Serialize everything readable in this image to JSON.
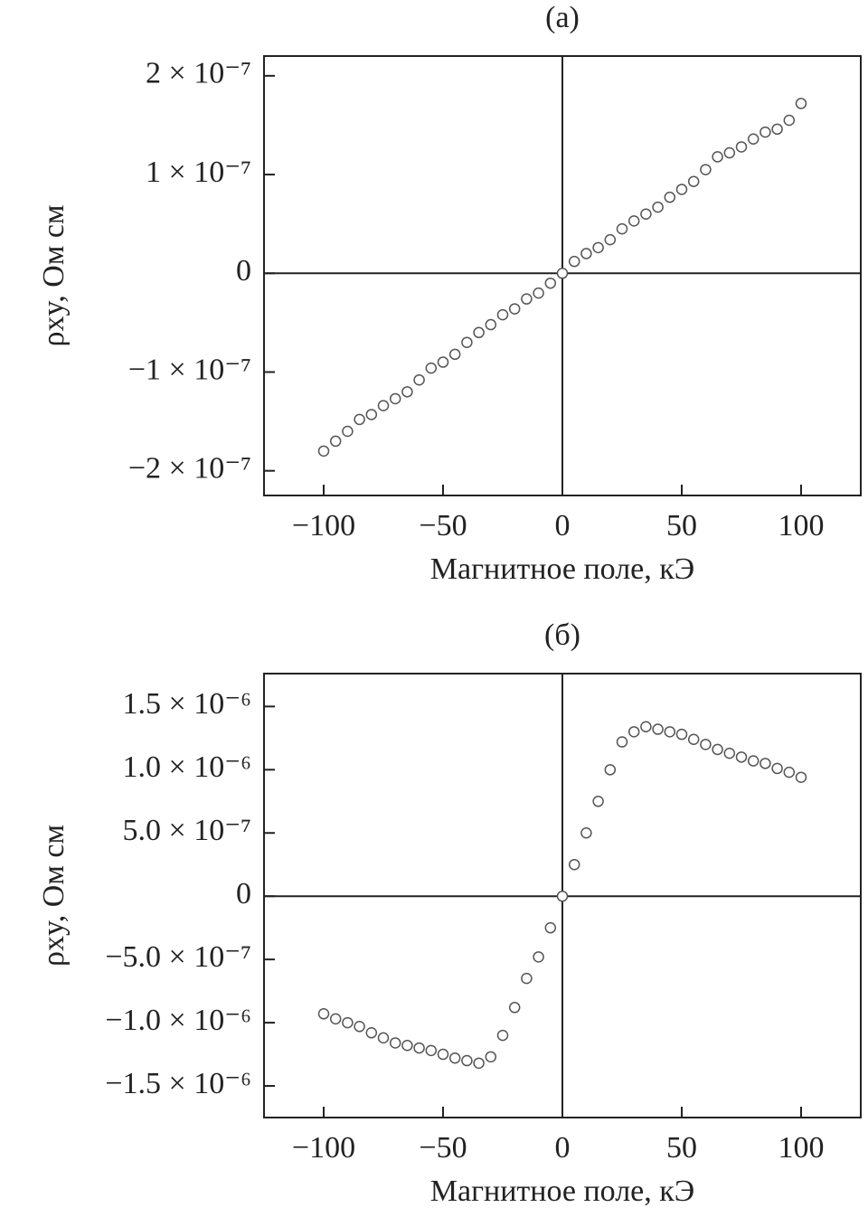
{
  "chart_data": [
    {
      "type": "scatter",
      "title": "(a)",
      "x_label": "Магнитное поле, кЭ",
      "y_label": "ρxy, Ом см",
      "x": [
        -100,
        -95,
        -90,
        -85,
        -80,
        -75,
        -70,
        -65,
        -60,
        -55,
        -50,
        -45,
        -40,
        -35,
        -30,
        -25,
        -20,
        -15,
        -10,
        -5,
        0,
        5,
        10,
        15,
        20,
        25,
        30,
        35,
        40,
        45,
        50,
        55,
        60,
        65,
        70,
        75,
        80,
        85,
        90,
        95,
        100
      ],
      "values": [
        -1.8e-07,
        -1.7e-07,
        -1.6e-07,
        -1.48e-07,
        -1.43e-07,
        -1.34e-07,
        -1.27e-07,
        -1.2e-07,
        -1.08e-07,
        -9.6e-08,
        -9e-08,
        -8.2e-08,
        -7e-08,
        -6e-08,
        -5.2e-08,
        -4.2e-08,
        -3.6e-08,
        -2.6e-08,
        -2e-08,
        -1e-08,
        0,
        1.2e-08,
        2e-08,
        2.6e-08,
        3.4e-08,
        4.5e-08,
        5.3e-08,
        6e-08,
        6.7e-08,
        7.7e-08,
        8.5e-08,
        9.3e-08,
        1.05e-07,
        1.18e-07,
        1.22e-07,
        1.28e-07,
        1.36e-07,
        1.43e-07,
        1.46e-07,
        1.55e-07,
        1.72e-07
      ],
      "color": "#555555",
      "marker_fill": "#ffffff",
      "zero_lines": true,
      "xlim": [
        -125,
        125
      ],
      "xticks": [
        {
          "value": -100,
          "label": "−100"
        },
        {
          "value": -50,
          "label": "−50"
        },
        0,
        50,
        100
      ],
      "ylim": [
        -2.25e-07,
        2.2e-07
      ],
      "yticks": [
        {
          "value": 2e-07,
          "label": "2 × 10⁻⁷"
        },
        {
          "value": 1e-07,
          "label": "1 × 10⁻⁷"
        },
        0,
        {
          "value": -1e-07,
          "label": "−1 × 10⁻⁷"
        },
        {
          "value": -2e-07,
          "label": "−2 × 10⁻⁷"
        }
      ]
    },
    {
      "type": "scatter",
      "title": "(б)",
      "x_label": "Магнитное поле, кЭ",
      "y_label": "ρxy, Ом см",
      "x": [
        -100,
        -95,
        -90,
        -85,
        -80,
        -75,
        -70,
        -65,
        -60,
        -55,
        -50,
        -45,
        -40,
        -35,
        -30,
        -25,
        -20,
        -15,
        -10,
        -5,
        0,
        5,
        10,
        15,
        20,
        25,
        30,
        35,
        40,
        45,
        50,
        55,
        60,
        65,
        70,
        75,
        80,
        85,
        90,
        95,
        100
      ],
      "values": [
        -9.3e-07,
        -9.7e-07,
        -1e-06,
        -1.03e-06,
        -1.08e-06,
        -1.12e-06,
        -1.16e-06,
        -1.18e-06,
        -1.2e-06,
        -1.22e-06,
        -1.25e-06,
        -1.28e-06,
        -1.3e-06,
        -1.32e-06,
        -1.27e-06,
        -1.1e-06,
        -8.8e-07,
        -6.5e-07,
        -4.8e-07,
        -2.5e-07,
        0,
        2.5e-07,
        5e-07,
        7.5e-07,
        1e-06,
        1.22e-06,
        1.3e-06,
        1.34e-06,
        1.32e-06,
        1.3e-06,
        1.28e-06,
        1.24e-06,
        1.2e-06,
        1.16e-06,
        1.13e-06,
        1.1e-06,
        1.07e-06,
        1.05e-06,
        1.01e-06,
        9.8e-07,
        9.4e-07
      ],
      "color": "#555555",
      "marker_fill": "#ffffff",
      "zero_lines": true,
      "xlim": [
        -125,
        125
      ],
      "xticks": [
        {
          "value": -100,
          "label": "−100"
        },
        {
          "value": -50,
          "label": "−50"
        },
        0,
        50,
        100
      ],
      "ylim": [
        -1.75e-06,
        1.76e-06
      ],
      "yticks": [
        {
          "value": 1.5e-06,
          "label": "1.5 × 10⁻⁶"
        },
        {
          "value": 1e-06,
          "label": "1.0 × 10⁻⁶"
        },
        {
          "value": 5e-07,
          "label": "5.0 × 10⁻⁷"
        },
        0,
        {
          "value": -5e-07,
          "label": "−5.0 × 10⁻⁷"
        },
        {
          "value": -1e-06,
          "label": "−1.0 × 10⁻⁶"
        },
        {
          "value": -1.5e-06,
          "label": "−1.5 × 10⁻⁶"
        }
      ]
    }
  ]
}
